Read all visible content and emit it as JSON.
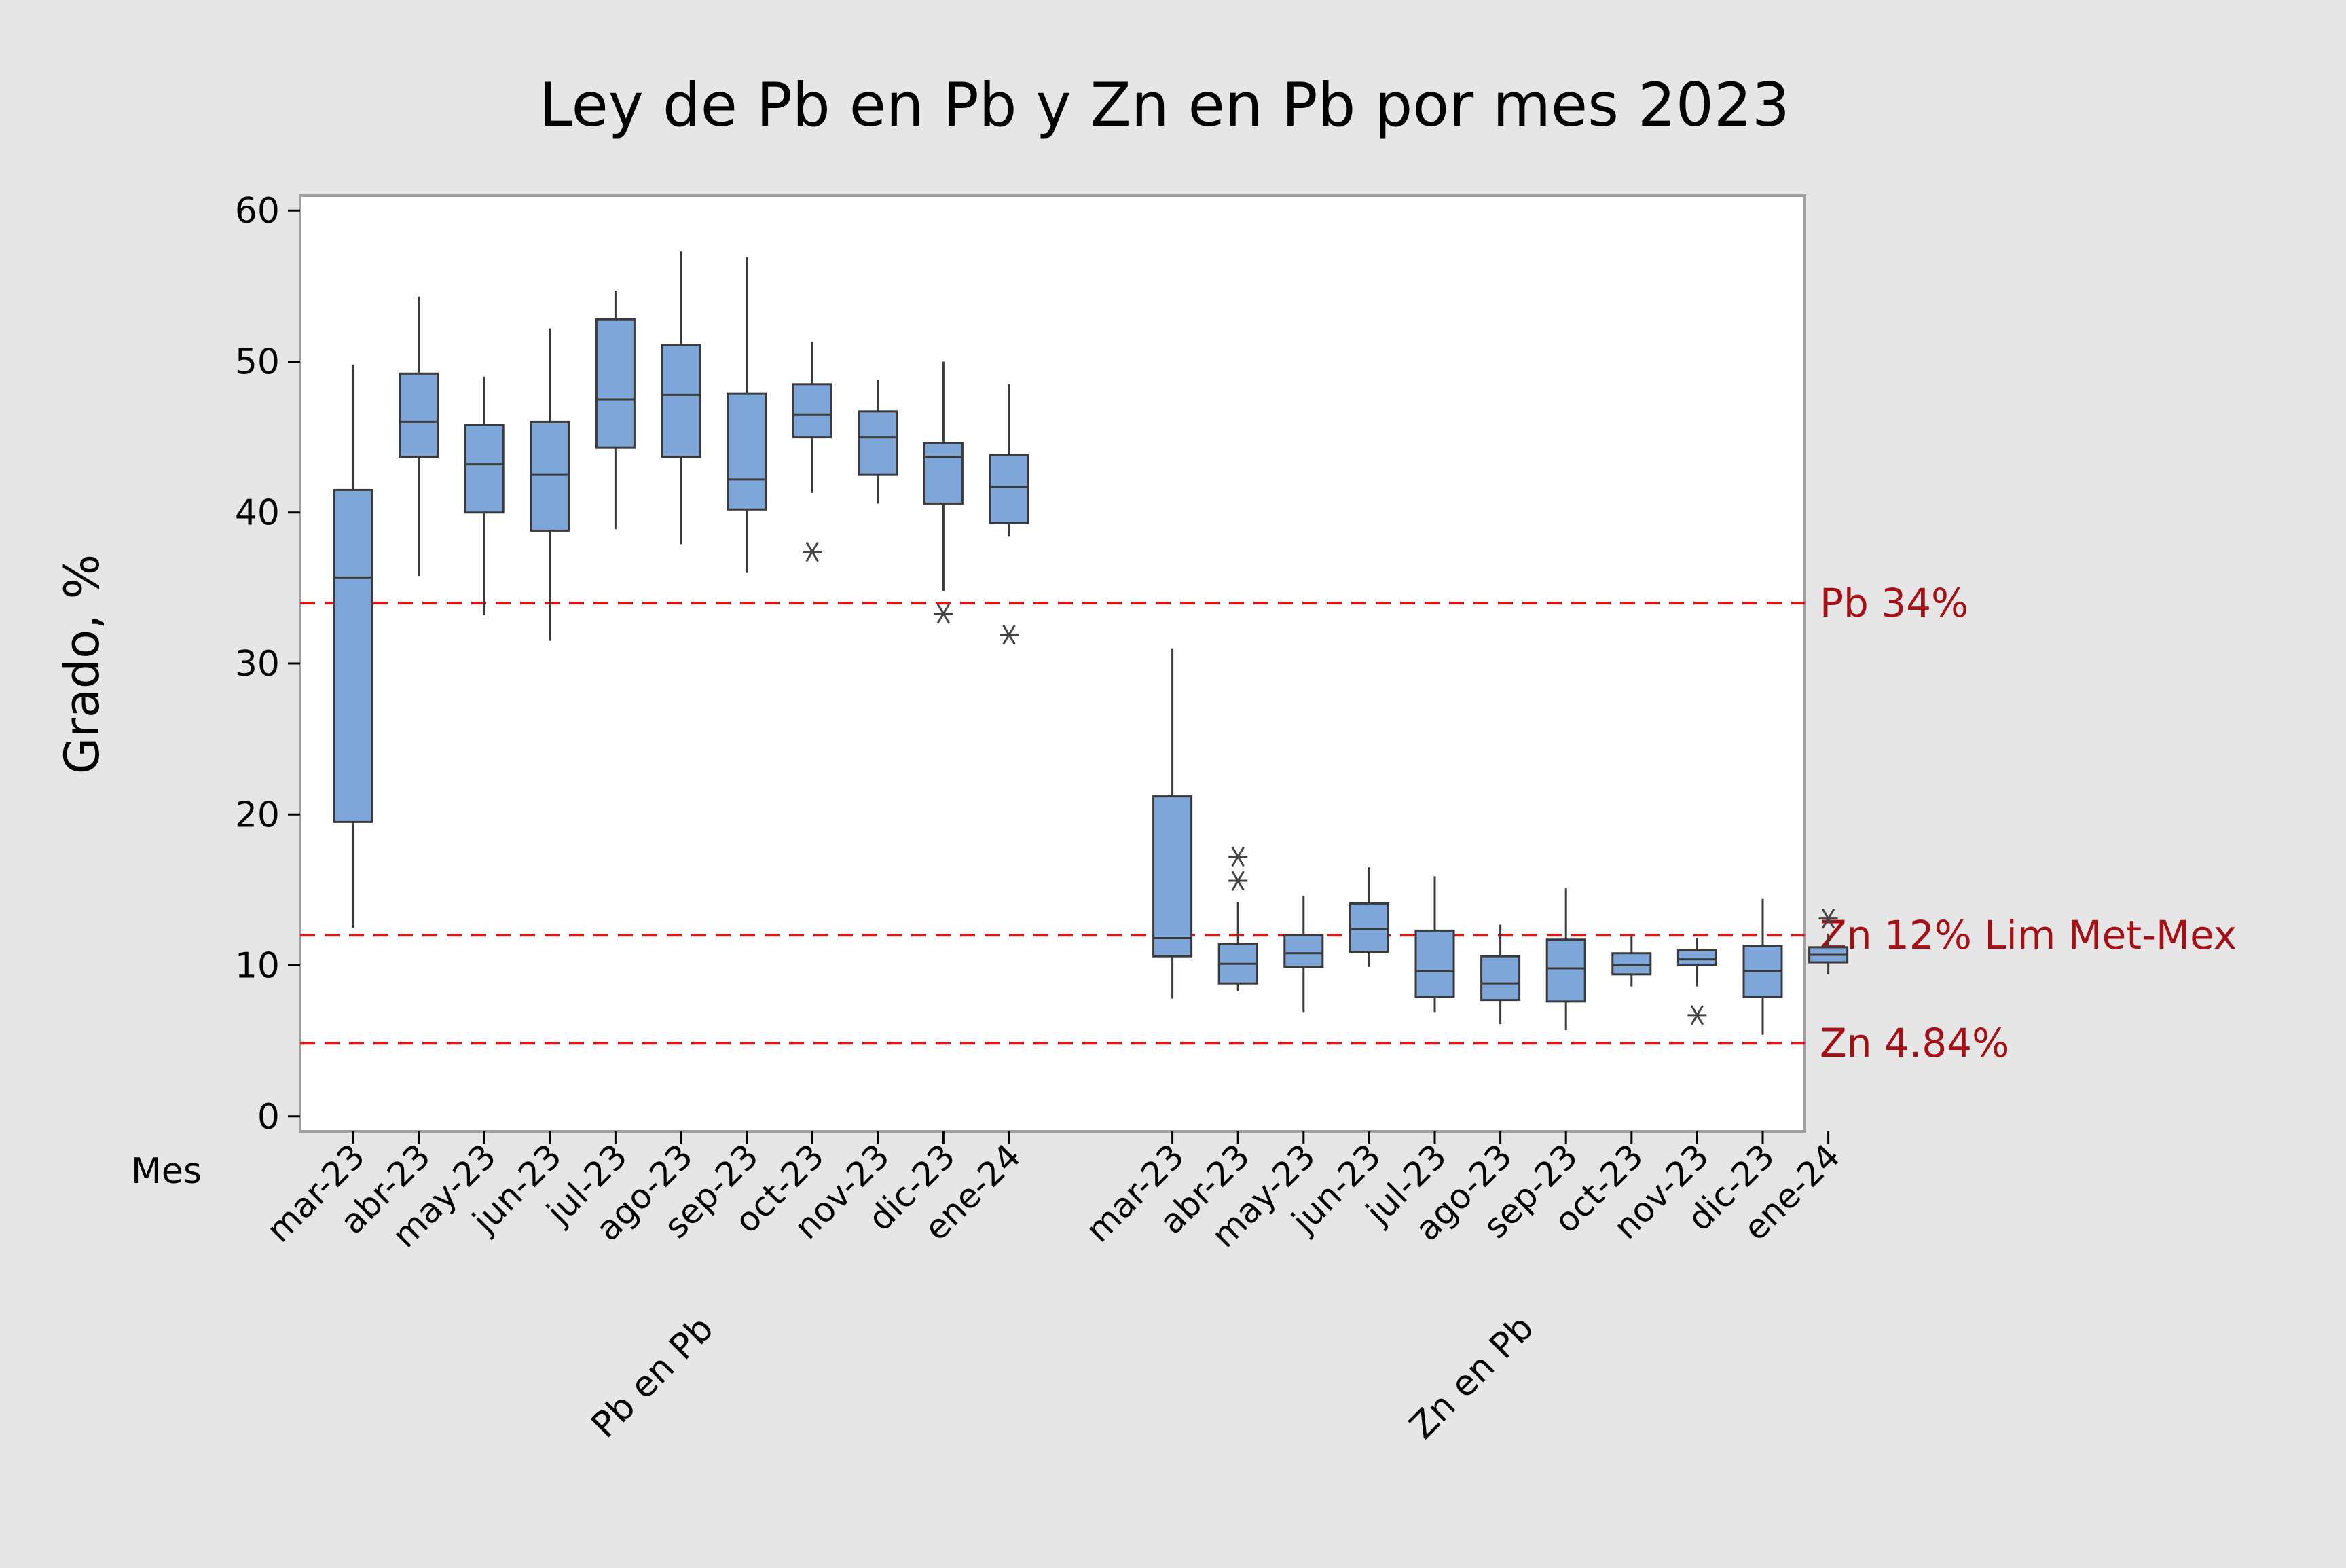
{
  "chart_data": {
    "type": "boxplot",
    "title": "Ley de Pb en Pb y Zn en Pb por mes 2023",
    "ylabel": "Grado, %",
    "xlabel_prefix": "Mes",
    "ylim": [
      -1,
      61
    ],
    "yticks": [
      0,
      10,
      20,
      30,
      40,
      50,
      60
    ],
    "grid": false,
    "colors": {
      "box_fill": "#7fa6d9",
      "box_stroke": "#3a3a3a",
      "ref_line": "#d7191c",
      "ref_text": "#a50f15"
    },
    "reference_lines": [
      {
        "value": 34,
        "label": "Pb 34%"
      },
      {
        "value": 12,
        "label": "Zn 12% Lim Met-Mex"
      },
      {
        "value": 4.84,
        "label": "Zn 4.84%"
      }
    ],
    "groups": [
      {
        "name": "Pb en Pb",
        "boxes": [
          {
            "month": "mar-23",
            "min": 12.5,
            "q1": 19.5,
            "median": 35.7,
            "q3": 41.5,
            "max": 49.8,
            "outliers": []
          },
          {
            "month": "abr-23",
            "min": 35.8,
            "q1": 43.7,
            "median": 46.0,
            "q3": 49.2,
            "max": 54.3,
            "outliers": []
          },
          {
            "month": "may-23",
            "min": 33.2,
            "q1": 40.0,
            "median": 43.2,
            "q3": 45.8,
            "max": 49.0,
            "outliers": []
          },
          {
            "month": "jun-23",
            "min": 31.5,
            "q1": 38.8,
            "median": 42.5,
            "q3": 46.0,
            "max": 52.2,
            "outliers": []
          },
          {
            "month": "jul-23",
            "min": 38.9,
            "q1": 44.3,
            "median": 47.5,
            "q3": 52.8,
            "max": 54.7,
            "outliers": []
          },
          {
            "month": "ago-23",
            "min": 37.9,
            "q1": 43.7,
            "median": 47.8,
            "q3": 51.1,
            "max": 57.3,
            "outliers": []
          },
          {
            "month": "sep-23",
            "min": 36.0,
            "q1": 40.2,
            "median": 42.2,
            "q3": 47.9,
            "max": 56.9,
            "outliers": []
          },
          {
            "month": "oct-23",
            "min": 41.3,
            "q1": 45.0,
            "median": 46.5,
            "q3": 48.5,
            "max": 51.3,
            "outliers": [
              37.4
            ]
          },
          {
            "month": "nov-23",
            "min": 40.6,
            "q1": 42.5,
            "median": 45.0,
            "q3": 46.7,
            "max": 48.8,
            "outliers": []
          },
          {
            "month": "dic-23",
            "min": 34.8,
            "q1": 40.6,
            "median": 43.7,
            "q3": 44.6,
            "max": 50.0,
            "outliers": [
              33.3
            ]
          },
          {
            "month": "ene-24",
            "min": 38.4,
            "q1": 39.3,
            "median": 41.7,
            "q3": 43.8,
            "max": 48.5,
            "outliers": [
              31.9
            ]
          }
        ]
      },
      {
        "name": "Zn en Pb",
        "boxes": [
          {
            "month": "mar-23",
            "min": 7.8,
            "q1": 10.6,
            "median": 11.8,
            "q3": 21.2,
            "max": 31.0,
            "outliers": []
          },
          {
            "month": "abr-23",
            "min": 8.3,
            "q1": 8.8,
            "median": 10.1,
            "q3": 11.4,
            "max": 14.2,
            "outliers": [
              15.6,
              17.2
            ]
          },
          {
            "month": "may-23",
            "min": 6.9,
            "q1": 9.9,
            "median": 10.8,
            "q3": 12.0,
            "max": 14.6,
            "outliers": []
          },
          {
            "month": "jun-23",
            "min": 9.9,
            "q1": 10.9,
            "median": 12.4,
            "q3": 14.1,
            "max": 16.5,
            "outliers": []
          },
          {
            "month": "jul-23",
            "min": 6.9,
            "q1": 7.9,
            "median": 9.6,
            "q3": 12.3,
            "max": 15.9,
            "outliers": []
          },
          {
            "month": "ago-23",
            "min": 6.1,
            "q1": 7.7,
            "median": 8.8,
            "q3": 10.6,
            "max": 12.7,
            "outliers": []
          },
          {
            "month": "sep-23",
            "min": 5.7,
            "q1": 7.6,
            "median": 9.8,
            "q3": 11.7,
            "max": 15.1,
            "outliers": []
          },
          {
            "month": "oct-23",
            "min": 8.6,
            "q1": 9.4,
            "median": 10.0,
            "q3": 10.8,
            "max": 12.0,
            "outliers": []
          },
          {
            "month": "nov-23",
            "min": 8.6,
            "q1": 10.0,
            "median": 10.4,
            "q3": 11.0,
            "max": 11.8,
            "outliers": [
              6.7
            ]
          },
          {
            "month": "dic-23",
            "min": 5.4,
            "q1": 7.9,
            "median": 9.6,
            "q3": 11.3,
            "max": 14.4,
            "outliers": []
          },
          {
            "month": "ene-24",
            "min": 9.4,
            "q1": 10.2,
            "median": 10.7,
            "q3": 11.2,
            "max": 12.1,
            "outliers": [
              13.1
            ]
          }
        ]
      }
    ]
  }
}
